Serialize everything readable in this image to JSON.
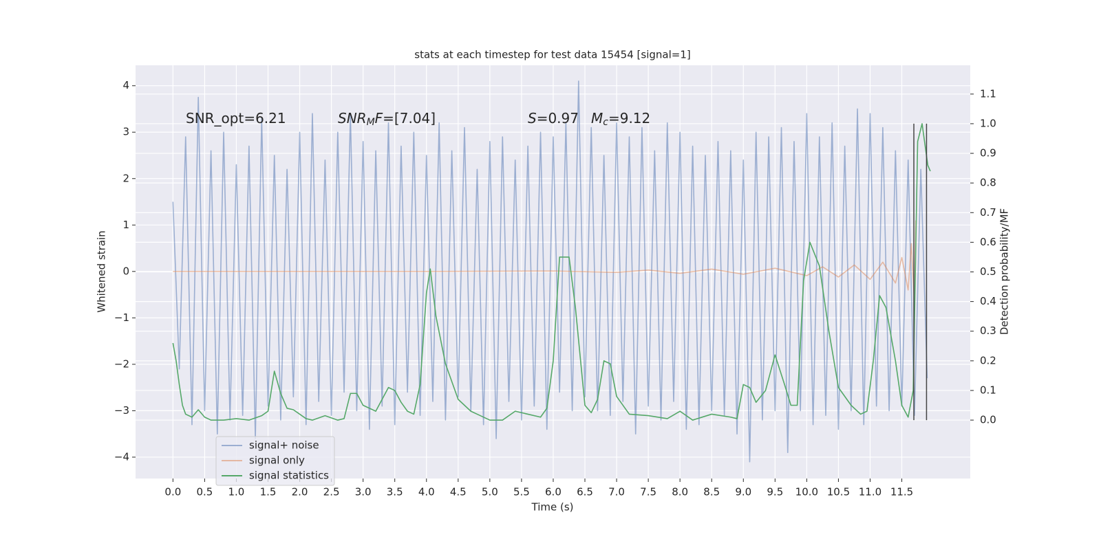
{
  "chart_data": {
    "type": "line",
    "title": "stats at each timestep for test data 15454 [signal=1]",
    "xlabel": "Time (s)",
    "ylabel": "Whitened strain",
    "y2label": "Detection probability/MF",
    "grid": true,
    "background": "#eaeaf2",
    "legend": "lower left",
    "xlim": [
      -0.59,
      12.58
    ],
    "ylim": [
      -4.46,
      4.44
    ],
    "y2lim": [
      -0.197,
      1.197
    ],
    "xticks": [
      {
        "value": 0,
        "label": "0.0"
      },
      0.5,
      {
        "value": 1,
        "label": "1.0"
      },
      1.5,
      {
        "value": 2,
        "label": "2.0"
      },
      2.5,
      {
        "value": 3,
        "label": "3.0"
      },
      3.5,
      {
        "value": 4,
        "label": "4.0"
      },
      4.5,
      {
        "value": 5,
        "label": "5.0"
      },
      5.5,
      {
        "value": 6,
        "label": "6.0"
      },
      6.5,
      {
        "value": 7,
        "label": "7.0"
      },
      7.5,
      {
        "value": 8,
        "label": "8.0"
      },
      8.5,
      {
        "value": 9,
        "label": "9.0"
      },
      9.5,
      {
        "value": 10,
        "label": "10.0"
      },
      10.5,
      {
        "value": 11,
        "label": "11.0"
      },
      11.5
    ],
    "yticks": [
      {
        "value": -4,
        "label": "−4"
      },
      {
        "value": -3,
        "label": "−3"
      },
      {
        "value": -2,
        "label": "−2"
      },
      {
        "value": -1,
        "label": "−1"
      },
      0,
      1,
      2,
      3,
      4
    ],
    "y2ticks": [
      {
        "value": 0,
        "label": "0.0"
      },
      0.1,
      0.2,
      0.3,
      0.4,
      0.5,
      0.6,
      0.7,
      0.8,
      0.9,
      {
        "value": 1,
        "label": "1.0"
      },
      1.1
    ],
    "annotations": [
      [
        {
          "text": "SNR_opt=6.21"
        }
      ],
      [
        {
          "text": "SNR",
          "italic": true
        },
        {
          "text": "M",
          "italic": true,
          "sub": true
        },
        {
          "text": "F",
          "italic": true
        },
        {
          "text": "=[7.04]"
        }
      ],
      [
        {
          "text": "S",
          "italic": true
        },
        {
          "text": "=0.97"
        }
      ],
      [
        {
          "text": "M",
          "italic": true
        },
        {
          "text": "c",
          "italic": true,
          "sub": true
        },
        {
          "text": "=9.12"
        }
      ]
    ],
    "vlines": {
      "x": [
        11.69,
        11.89
      ],
      "y2": [
        0,
        1
      ],
      "color": "#444444"
    },
    "series": [
      {
        "name": "signal+ noise",
        "color": "#4c72b0",
        "alpha": 0.5,
        "x": [
          0.0,
          0.1,
          0.2,
          0.3,
          0.4,
          0.5,
          0.6,
          0.7,
          0.8,
          0.9,
          1.0,
          1.1,
          1.2,
          1.3,
          1.4,
          1.5,
          1.6,
          1.7,
          1.8,
          1.9,
          2.0,
          2.1,
          2.2,
          2.3,
          2.4,
          2.5,
          2.6,
          2.7,
          2.8,
          2.9,
          3.0,
          3.1,
          3.2,
          3.3,
          3.4,
          3.5,
          3.6,
          3.7,
          3.8,
          3.9,
          4.0,
          4.1,
          4.2,
          4.3,
          4.4,
          4.5,
          4.6,
          4.7,
          4.8,
          4.9,
          5.0,
          5.1,
          5.2,
          5.3,
          5.4,
          5.5,
          5.6,
          5.7,
          5.8,
          5.9,
          6.0,
          6.1,
          6.2,
          6.3,
          6.4,
          6.5,
          6.6,
          6.7,
          6.8,
          6.9,
          7.0,
          7.1,
          7.2,
          7.3,
          7.4,
          7.5,
          7.6,
          7.7,
          7.8,
          7.9,
          8.0,
          8.1,
          8.2,
          8.3,
          8.4,
          8.5,
          8.6,
          8.7,
          8.8,
          8.9,
          9.0,
          9.1,
          9.2,
          9.3,
          9.4,
          9.5,
          9.6,
          9.7,
          9.8,
          9.9,
          10.0,
          10.1,
          10.2,
          10.3,
          10.4,
          10.5,
          10.6,
          10.7,
          10.8,
          10.9,
          11.0,
          11.1,
          11.2,
          11.3,
          11.4,
          11.5,
          11.6,
          11.7,
          11.8,
          11.9
        ],
        "values": [
          1.5,
          -2.1,
          2.9,
          -3.3,
          3.75,
          -3.0,
          2.6,
          -3.5,
          3.0,
          -3.2,
          2.3,
          -3.1,
          2.7,
          -3.6,
          3.3,
          -2.9,
          2.5,
          -3.2,
          2.2,
          -2.7,
          3.0,
          -3.3,
          3.4,
          -2.8,
          2.4,
          -3.1,
          3.0,
          -2.6,
          3.4,
          -3.0,
          2.8,
          -3.4,
          2.6,
          -2.9,
          3.2,
          -3.3,
          2.7,
          -2.6,
          3.0,
          -3.1,
          2.5,
          -2.8,
          3.2,
          -3.2,
          2.6,
          -2.7,
          3.1,
          -3.0,
          2.2,
          -3.3,
          2.8,
          -3.6,
          2.9,
          -2.8,
          2.4,
          -3.2,
          2.7,
          -2.9,
          3.0,
          -3.4,
          2.9,
          -2.6,
          3.2,
          -3.0,
          4.1,
          -2.7,
          3.1,
          -3.0,
          2.5,
          -3.1,
          3.2,
          -2.8,
          2.9,
          -3.5,
          3.1,
          -2.9,
          2.6,
          -3.2,
          3.2,
          -2.8,
          3.0,
          -3.4,
          2.7,
          -3.3,
          2.5,
          -3.0,
          2.8,
          -3.1,
          2.6,
          -3.5,
          2.4,
          -4.1,
          3.0,
          -3.2,
          2.9,
          -3.0,
          3.1,
          -3.9,
          2.8,
          -3.0,
          3.4,
          -3.3,
          2.9,
          -3.1,
          3.2,
          -3.4,
          2.7,
          -3.0,
          3.5,
          -3.3,
          3.4,
          -2.9,
          3.1,
          -3.0,
          2.6,
          -2.9,
          2.4,
          -3.1,
          2.2,
          -2.3
        ]
      },
      {
        "name": "signal only",
        "color": "#dd8452",
        "alpha": 0.5,
        "x": [
          0,
          2,
          4,
          6,
          7,
          7.5,
          8,
          8.5,
          9,
          9.5,
          10,
          10.25,
          10.5,
          10.75,
          11,
          11.2,
          11.4,
          11.5,
          11.6,
          11.65,
          11.7,
          11.72
        ],
        "values": [
          0,
          0,
          0,
          0.01,
          -0.02,
          0.03,
          -0.04,
          0.05,
          -0.06,
          0.07,
          -0.09,
          0.1,
          -0.12,
          0.14,
          -0.17,
          0.2,
          -0.25,
          0.3,
          -0.4,
          0.6,
          -0.7,
          1.1
        ]
      },
      {
        "name": "signal statistics",
        "color": "#55a868",
        "alpha": 1,
        "axis": "y2",
        "x": [
          0,
          0.05,
          0.1,
          0.15,
          0.2,
          0.3,
          0.4,
          0.5,
          0.6,
          0.8,
          1.0,
          1.2,
          1.4,
          1.5,
          1.6,
          1.7,
          1.8,
          1.9,
          2.0,
          2.1,
          2.2,
          2.4,
          2.6,
          2.7,
          2.8,
          2.9,
          3.0,
          3.2,
          3.4,
          3.5,
          3.6,
          3.7,
          3.8,
          3.9,
          4.0,
          4.06,
          4.15,
          4.3,
          4.5,
          4.7,
          4.8,
          5.0,
          5.2,
          5.4,
          5.6,
          5.8,
          5.9,
          6.0,
          6.1,
          6.25,
          6.35,
          6.5,
          6.6,
          6.7,
          6.8,
          6.9,
          7.0,
          7.2,
          7.5,
          7.8,
          8.0,
          8.2,
          8.5,
          8.8,
          8.9,
          9.0,
          9.1,
          9.2,
          9.35,
          9.5,
          9.65,
          9.75,
          9.85,
          9.95,
          10.05,
          10.2,
          10.35,
          10.5,
          10.7,
          10.85,
          10.95,
          11.05,
          11.15,
          11.25,
          11.4,
          11.5,
          11.6,
          11.68,
          11.75,
          11.82,
          11.91,
          11.95
        ],
        "values": [
          0.26,
          0.2,
          0.12,
          0.05,
          0.02,
          0.01,
          0.035,
          0.01,
          0.0,
          0.0,
          0.005,
          0.0,
          0.015,
          0.03,
          0.165,
          0.09,
          0.04,
          0.035,
          0.02,
          0.005,
          0.0,
          0.015,
          0.0,
          0.005,
          0.09,
          0.09,
          0.05,
          0.03,
          0.11,
          0.1,
          0.06,
          0.03,
          0.02,
          0.12,
          0.43,
          0.51,
          0.35,
          0.19,
          0.07,
          0.03,
          0.02,
          0.0,
          0.0,
          0.03,
          0.02,
          0.01,
          0.04,
          0.2,
          0.55,
          0.55,
          0.38,
          0.05,
          0.025,
          0.07,
          0.2,
          0.19,
          0.08,
          0.02,
          0.015,
          0.005,
          0.03,
          0.0,
          0.02,
          0.01,
          0.005,
          0.12,
          0.11,
          0.06,
          0.1,
          0.22,
          0.12,
          0.05,
          0.05,
          0.47,
          0.6,
          0.52,
          0.3,
          0.11,
          0.05,
          0.02,
          0.03,
          0.2,
          0.42,
          0.38,
          0.2,
          0.05,
          0.01,
          0.1,
          0.94,
          1.0,
          0.86,
          0.84
        ]
      }
    ]
  }
}
